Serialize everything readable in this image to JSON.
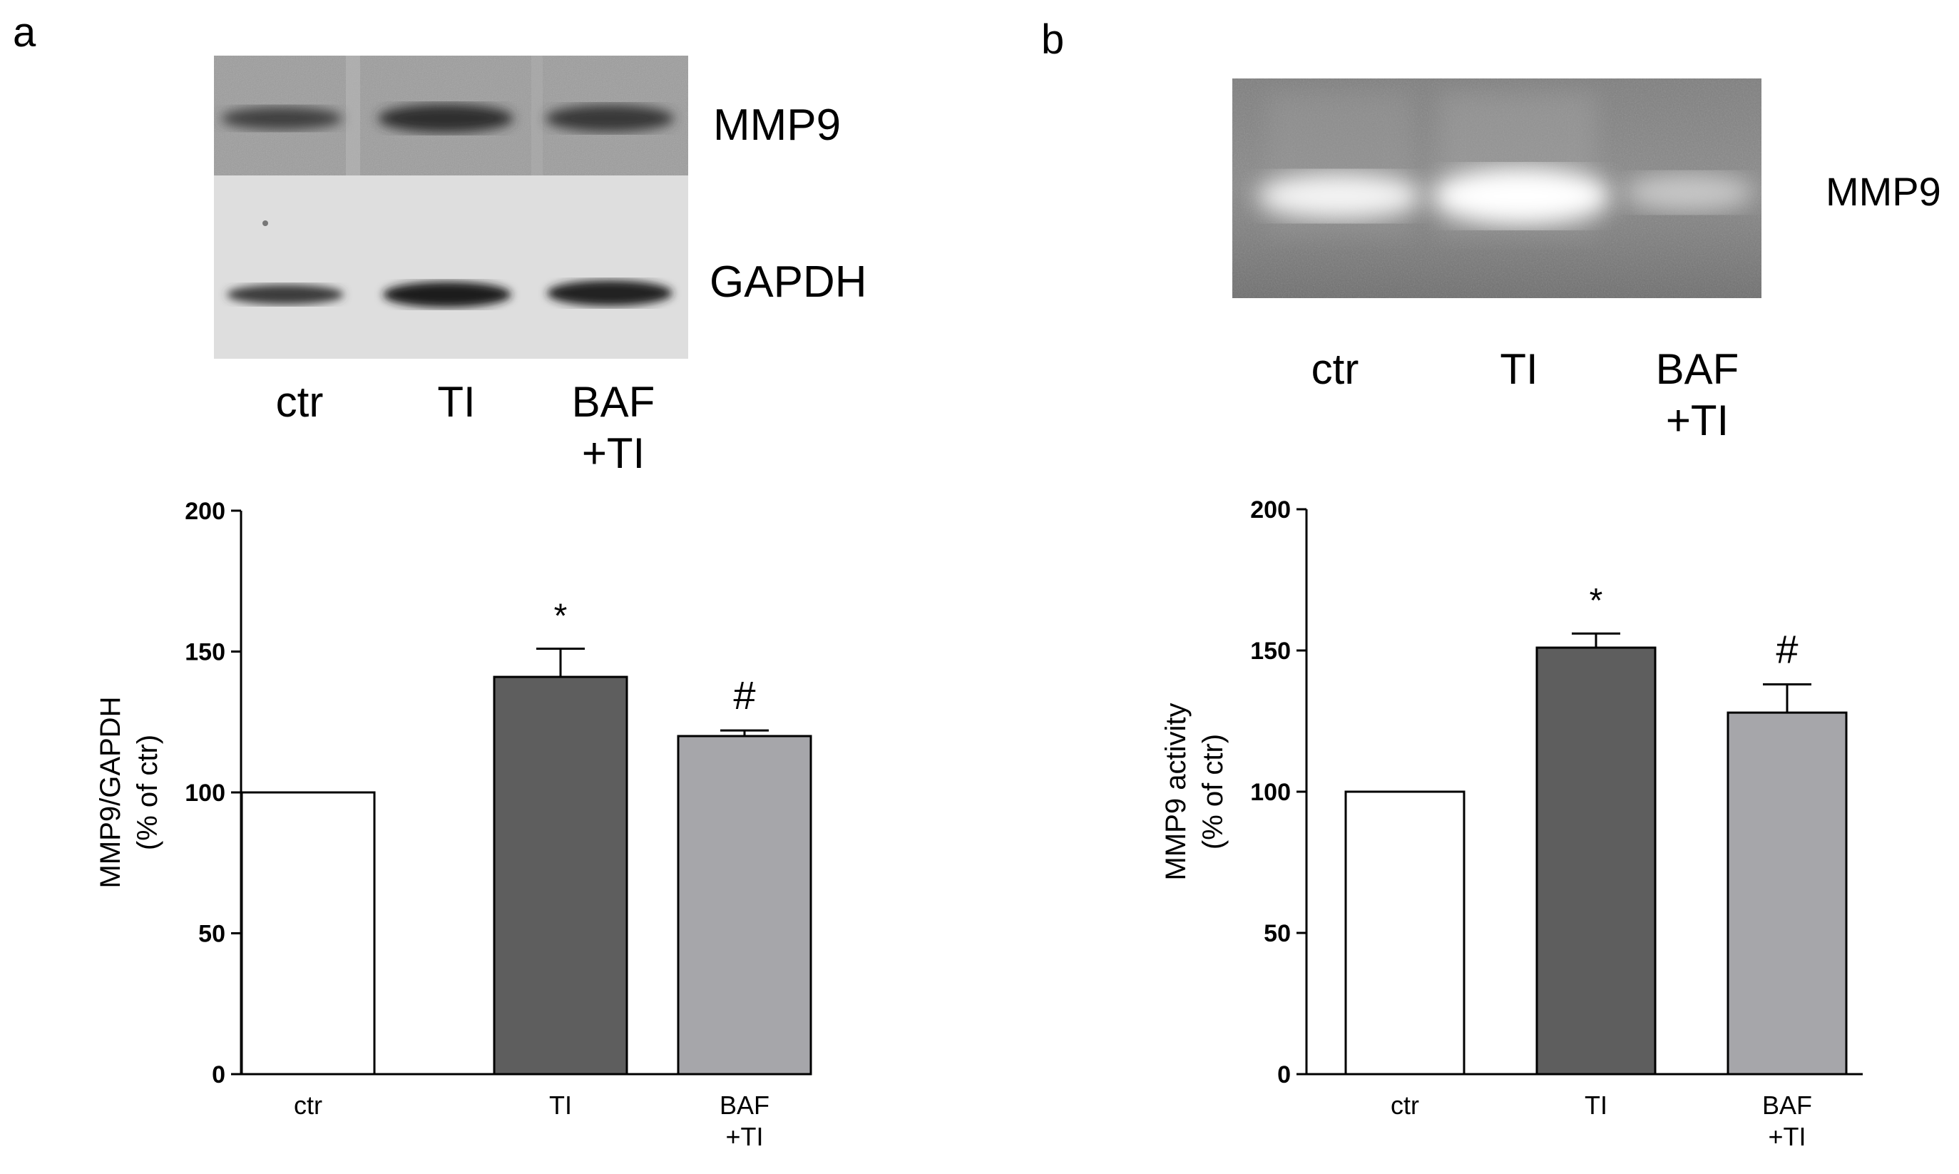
{
  "panels": [
    {
      "letter": "a",
      "blot": {
        "rows": [
          {
            "label": "MMP9"
          },
          {
            "label": "GAPDH"
          }
        ],
        "lanes": [
          {
            "lines": [
              "ctr"
            ]
          },
          {
            "lines": [
              "TI"
            ]
          },
          {
            "lines": [
              "BAF",
              "+TI"
            ]
          }
        ]
      }
    },
    {
      "letter": "b",
      "blot": {
        "rows": [
          {
            "label": "MMP9"
          }
        ],
        "lanes": [
          {
            "lines": [
              "ctr"
            ]
          },
          {
            "lines": [
              "TI"
            ]
          },
          {
            "lines": [
              "BAF",
              "+TI"
            ]
          }
        ]
      }
    }
  ],
  "colors": {
    "bar_ctr": "#ffffff",
    "bar_ti": "#5e5e5e",
    "bar_baf": "#a6a6aa",
    "axis": "#000000"
  },
  "chart_data": [
    {
      "type": "bar",
      "categories": [
        [
          "ctr"
        ],
        [
          "TI"
        ],
        [
          "BAF",
          "+TI"
        ]
      ],
      "values": [
        100,
        141,
        120
      ],
      "errors": [
        0,
        10,
        2
      ],
      "annotations": [
        "",
        "*",
        "#"
      ],
      "title": "",
      "xlabel": "",
      "ylabel": [
        "MMP9/GAPDH",
        "(% of ctr)"
      ],
      "ylim": [
        0,
        200
      ],
      "yticks": [
        0,
        50,
        100,
        150,
        200
      ],
      "grid": false,
      "legend": "none"
    },
    {
      "type": "bar",
      "categories": [
        [
          "ctr"
        ],
        [
          "TI"
        ],
        [
          "BAF",
          "+TI"
        ]
      ],
      "values": [
        100,
        151,
        128
      ],
      "errors": [
        0,
        5,
        10
      ],
      "annotations": [
        "",
        "*",
        "#"
      ],
      "title": "",
      "xlabel": "",
      "ylabel": [
        "MMP9 activity",
        "(% of ctr)"
      ],
      "ylim": [
        0,
        200
      ],
      "yticks": [
        0,
        50,
        100,
        150,
        200
      ],
      "grid": false,
      "legend": "none"
    }
  ]
}
